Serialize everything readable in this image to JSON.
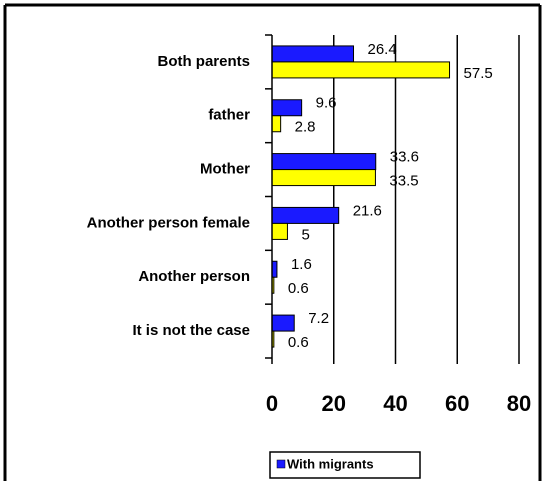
{
  "chart_data": {
    "type": "barh",
    "categories": [
      "Both parents",
      "father",
      "Mother",
      "Another person female",
      "Another person",
      "It is not the case"
    ],
    "series": [
      {
        "name": "With migrants",
        "color": "#1a1aff",
        "values": [
          26.4,
          9.6,
          33.6,
          21.6,
          1.6,
          7.2
        ]
      },
      {
        "color": "#ffff00",
        "values": [
          57.5,
          2.8,
          33.5,
          5,
          0.6,
          0.6
        ]
      }
    ],
    "xlim": [
      0,
      80
    ],
    "xticks": [
      0,
      20,
      40,
      60,
      80
    ],
    "grid": true,
    "legend": "bottom"
  }
}
